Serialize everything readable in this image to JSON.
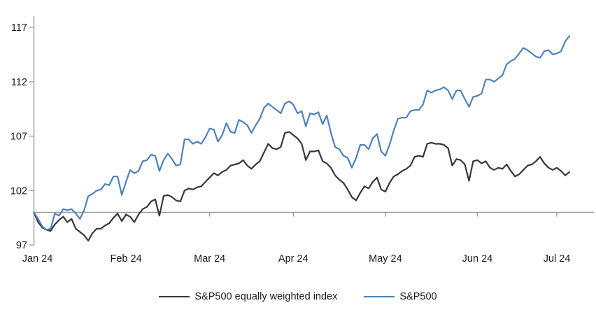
{
  "chart_data": {
    "type": "line",
    "title": "",
    "xlabel": "",
    "ylabel": "",
    "grid": false,
    "legend_position": "bottom-center",
    "ylim": [
      97,
      118
    ],
    "y_ticks": [
      97,
      102,
      107,
      112,
      117
    ],
    "baseline_value": 100,
    "x_tick_labels": [
      "Jan 24",
      "Feb 24",
      "Mar 24",
      "Apr 24",
      "May 24",
      "Jun 24",
      "Jul 24"
    ],
    "x_tick_indices": [
      0,
      22,
      42,
      62,
      84,
      106,
      125
    ],
    "colors": {
      "axis": "#a6a6a6",
      "baseline": "#9d9d9d",
      "text": "#1a1a1a"
    },
    "series": [
      {
        "name": "S&P500 equally weighted index",
        "color": "#383838",
        "values": [
          100.0,
          99.1,
          98.6,
          98.4,
          98.3,
          98.9,
          99.3,
          99.6,
          99.1,
          99.4,
          98.5,
          98.2,
          97.9,
          97.4,
          98.1,
          98.5,
          98.5,
          98.8,
          99.0,
          99.5,
          99.9,
          99.2,
          99.8,
          99.6,
          99.1,
          99.8,
          100.3,
          100.5,
          101.0,
          101.2,
          99.7,
          101.5,
          101.6,
          101.4,
          101.1,
          101.0,
          102.0,
          102.2,
          102.1,
          102.3,
          102.4,
          102.8,
          103.2,
          103.6,
          103.4,
          103.7,
          103.9,
          104.3,
          104.4,
          104.5,
          104.8,
          104.3,
          104.0,
          104.4,
          104.7,
          105.5,
          106.3,
          105.9,
          105.8,
          106.0,
          107.3,
          107.4,
          107.1,
          106.8,
          106.3,
          104.8,
          105.6,
          105.6,
          105.7,
          104.7,
          104.5,
          104.1,
          103.4,
          103.0,
          102.7,
          102.1,
          101.4,
          101.1,
          101.8,
          102.4,
          102.2,
          102.8,
          103.2,
          102.1,
          101.9,
          102.7,
          103.3,
          103.5,
          103.8,
          104.0,
          104.3,
          105.1,
          105.2,
          105.1,
          106.3,
          106.4,
          106.3,
          106.3,
          106.2,
          105.9,
          104.3,
          104.9,
          104.8,
          104.4,
          102.9,
          104.7,
          104.8,
          104.5,
          104.7,
          104.1,
          103.9,
          104.1,
          104.0,
          104.4,
          103.8,
          103.3,
          103.5,
          103.9,
          104.3,
          104.4,
          104.7,
          105.1,
          104.5,
          104.1,
          103.9,
          104.1,
          103.8,
          103.4,
          103.7
        ]
      },
      {
        "name": "S&P500",
        "color": "#4e81bb",
        "values": [
          100.0,
          99.4,
          98.7,
          98.4,
          98.5,
          99.9,
          99.7,
          100.3,
          100.2,
          100.3,
          99.9,
          99.4,
          100.2,
          101.5,
          101.7,
          102.0,
          102.1,
          102.6,
          102.5,
          103.3,
          103.3,
          101.6,
          102.8,
          103.9,
          103.6,
          103.8,
          104.7,
          104.8,
          105.3,
          105.2,
          103.8,
          104.8,
          105.4,
          104.9,
          104.3,
          104.4,
          106.7,
          106.7,
          106.3,
          106.5,
          106.3,
          106.9,
          107.7,
          107.6,
          106.5,
          107.1,
          108.2,
          107.4,
          107.3,
          108.5,
          108.3,
          108.0,
          107.3,
          108.0,
          108.6,
          109.6,
          110.0,
          109.7,
          109.4,
          109.1,
          110.0,
          110.2,
          109.9,
          109.1,
          109.3,
          107.9,
          109.1,
          109.0,
          109.2,
          108.1,
          108.9,
          107.3,
          106.0,
          105.8,
          105.2,
          105.0,
          104.1,
          105.0,
          106.2,
          106.2,
          105.8,
          106.8,
          107.2,
          105.6,
          105.2,
          106.2,
          107.5,
          108.6,
          108.7,
          108.7,
          109.3,
          109.4,
          109.4,
          109.9,
          111.2,
          111.0,
          111.2,
          111.3,
          111.5,
          111.2,
          110.4,
          111.2,
          111.2,
          110.4,
          109.7,
          110.6,
          110.7,
          110.9,
          112.2,
          112.2,
          112.0,
          112.3,
          112.6,
          113.6,
          113.9,
          114.1,
          114.6,
          115.1,
          114.9,
          114.6,
          114.3,
          114.2,
          114.8,
          114.9,
          114.5,
          114.6,
          114.8,
          115.7,
          116.2
        ]
      }
    ]
  }
}
